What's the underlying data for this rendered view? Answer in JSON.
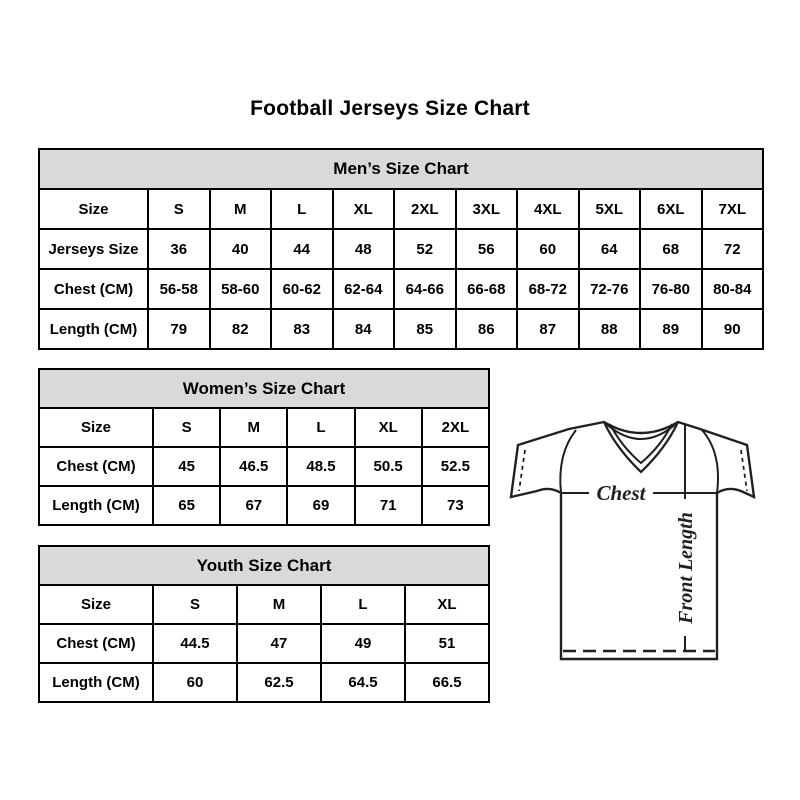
{
  "page": {
    "title": "Football Jerseys Size Chart"
  },
  "colors": {
    "table_header_bg": "#d9d9d9",
    "table_border": "#000000",
    "line_art": "#231f20",
    "background": "#ffffff"
  },
  "tables": {
    "men": {
      "title": "Men’s Size Chart",
      "rows": [
        [
          "Size",
          "S",
          "M",
          "L",
          "XL",
          "2XL",
          "3XL",
          "4XL",
          "5XL",
          "6XL",
          "7XL"
        ],
        [
          "Jerseys Size",
          "36",
          "40",
          "44",
          "48",
          "52",
          "56",
          "60",
          "64",
          "68",
          "72"
        ],
        [
          "Chest (CM)",
          "56-58",
          "58-60",
          "60-62",
          "62-64",
          "64-66",
          "66-68",
          "68-72",
          "72-76",
          "76-80",
          "80-84"
        ],
        [
          "Length (CM)",
          "79",
          "82",
          "83",
          "84",
          "85",
          "86",
          "87",
          "88",
          "89",
          "90"
        ]
      ]
    },
    "women": {
      "title": "Women’s Size Chart",
      "rows": [
        [
          "Size",
          "S",
          "M",
          "L",
          "XL",
          "2XL"
        ],
        [
          "Chest (CM)",
          "45",
          "46.5",
          "48.5",
          "50.5",
          "52.5"
        ],
        [
          "Length (CM)",
          "65",
          "67",
          "69",
          "71",
          "73"
        ]
      ]
    },
    "youth": {
      "title": "Youth Size Chart",
      "rows": [
        [
          "Size",
          "S",
          "M",
          "L",
          "XL"
        ],
        [
          "Chest (CM)",
          "44.5",
          "47",
          "49",
          "51"
        ],
        [
          "Length (CM)",
          "60",
          "62.5",
          "64.5",
          "66.5"
        ]
      ]
    }
  },
  "diagram": {
    "chest_label": "Chest",
    "front_length_label": "Front Length"
  }
}
